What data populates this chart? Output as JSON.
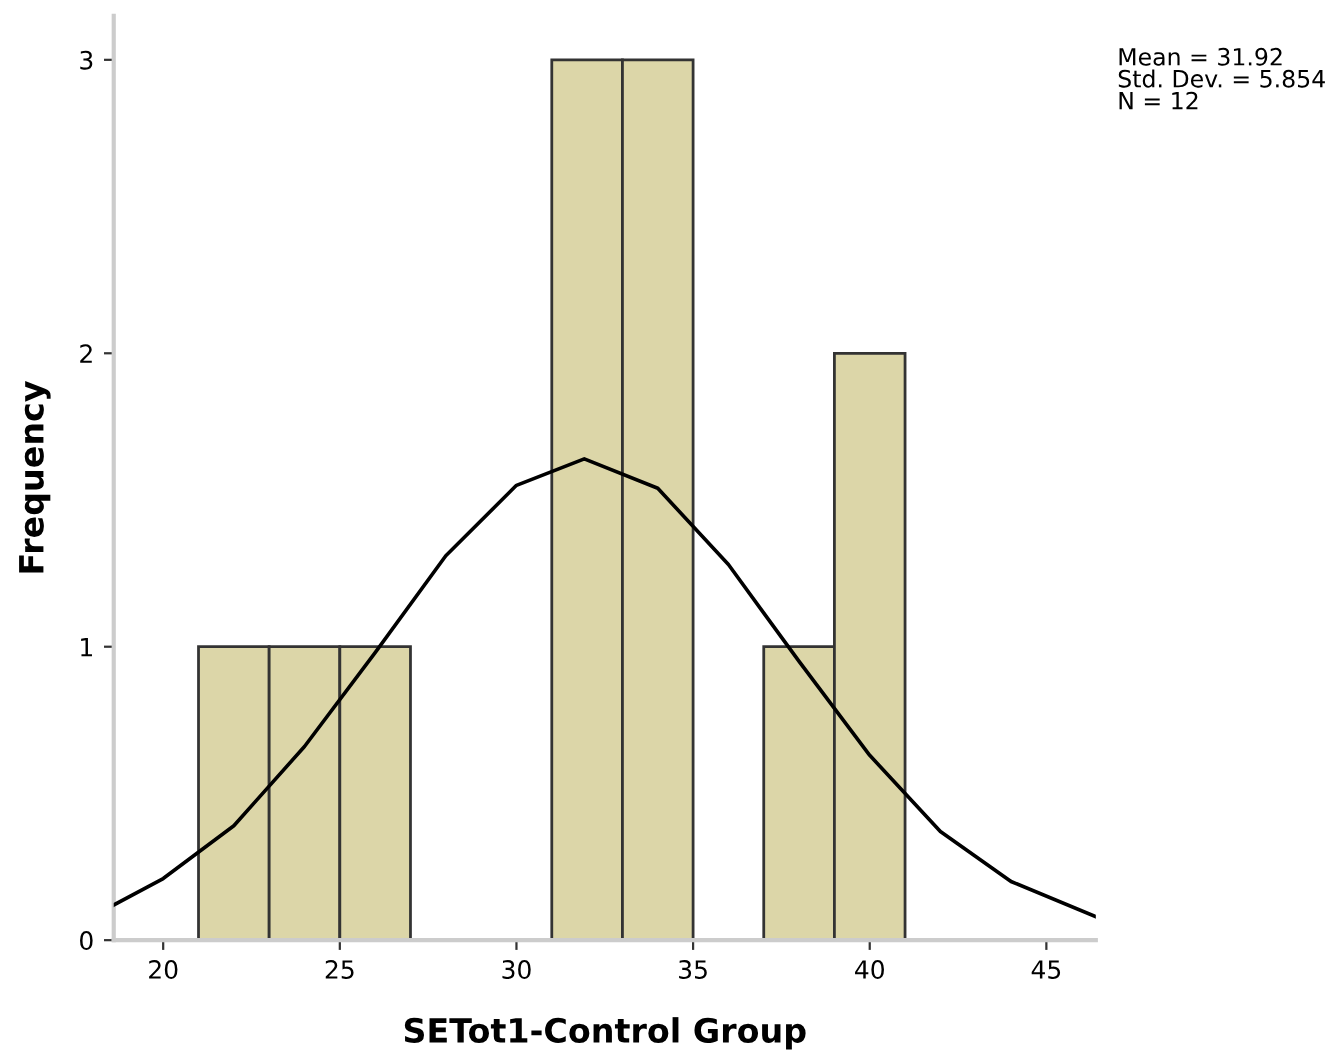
{
  "chart_data": {
    "type": "histogram",
    "xlabel": "SETot1-Control Group",
    "ylabel": "Frequency",
    "bins": [
      21,
      23,
      25,
      27,
      29,
      31,
      33,
      35,
      37,
      39,
      41
    ],
    "values": [
      1,
      1,
      1,
      0,
      0,
      3,
      3,
      0,
      1,
      2
    ],
    "color": "#dcd6a8",
    "series": [
      {
        "type": "line",
        "color": "#000000",
        "x": [
          18.6,
          20,
          22,
          24,
          26,
          28,
          30,
          31.92,
          34,
          36,
          38,
          40,
          42,
          44,
          46.4
        ],
        "values": [
          0.12,
          0.21,
          0.39,
          0.66,
          0.98,
          1.31,
          1.55,
          1.64,
          1.54,
          1.28,
          0.95,
          0.63,
          0.37,
          0.2,
          0.08
        ]
      }
    ],
    "xlim": [
      18.6,
      46.4
    ],
    "ylim": [
      0,
      3.15
    ],
    "xticks": [
      20,
      25,
      30,
      35,
      40,
      45
    ],
    "yticks": [
      0,
      1,
      2,
      3
    ],
    "grid": false,
    "legend": false,
    "annotations": [
      "Mean = 31.92\nStd. Dev. = 5.854\nN = 12"
    ]
  }
}
